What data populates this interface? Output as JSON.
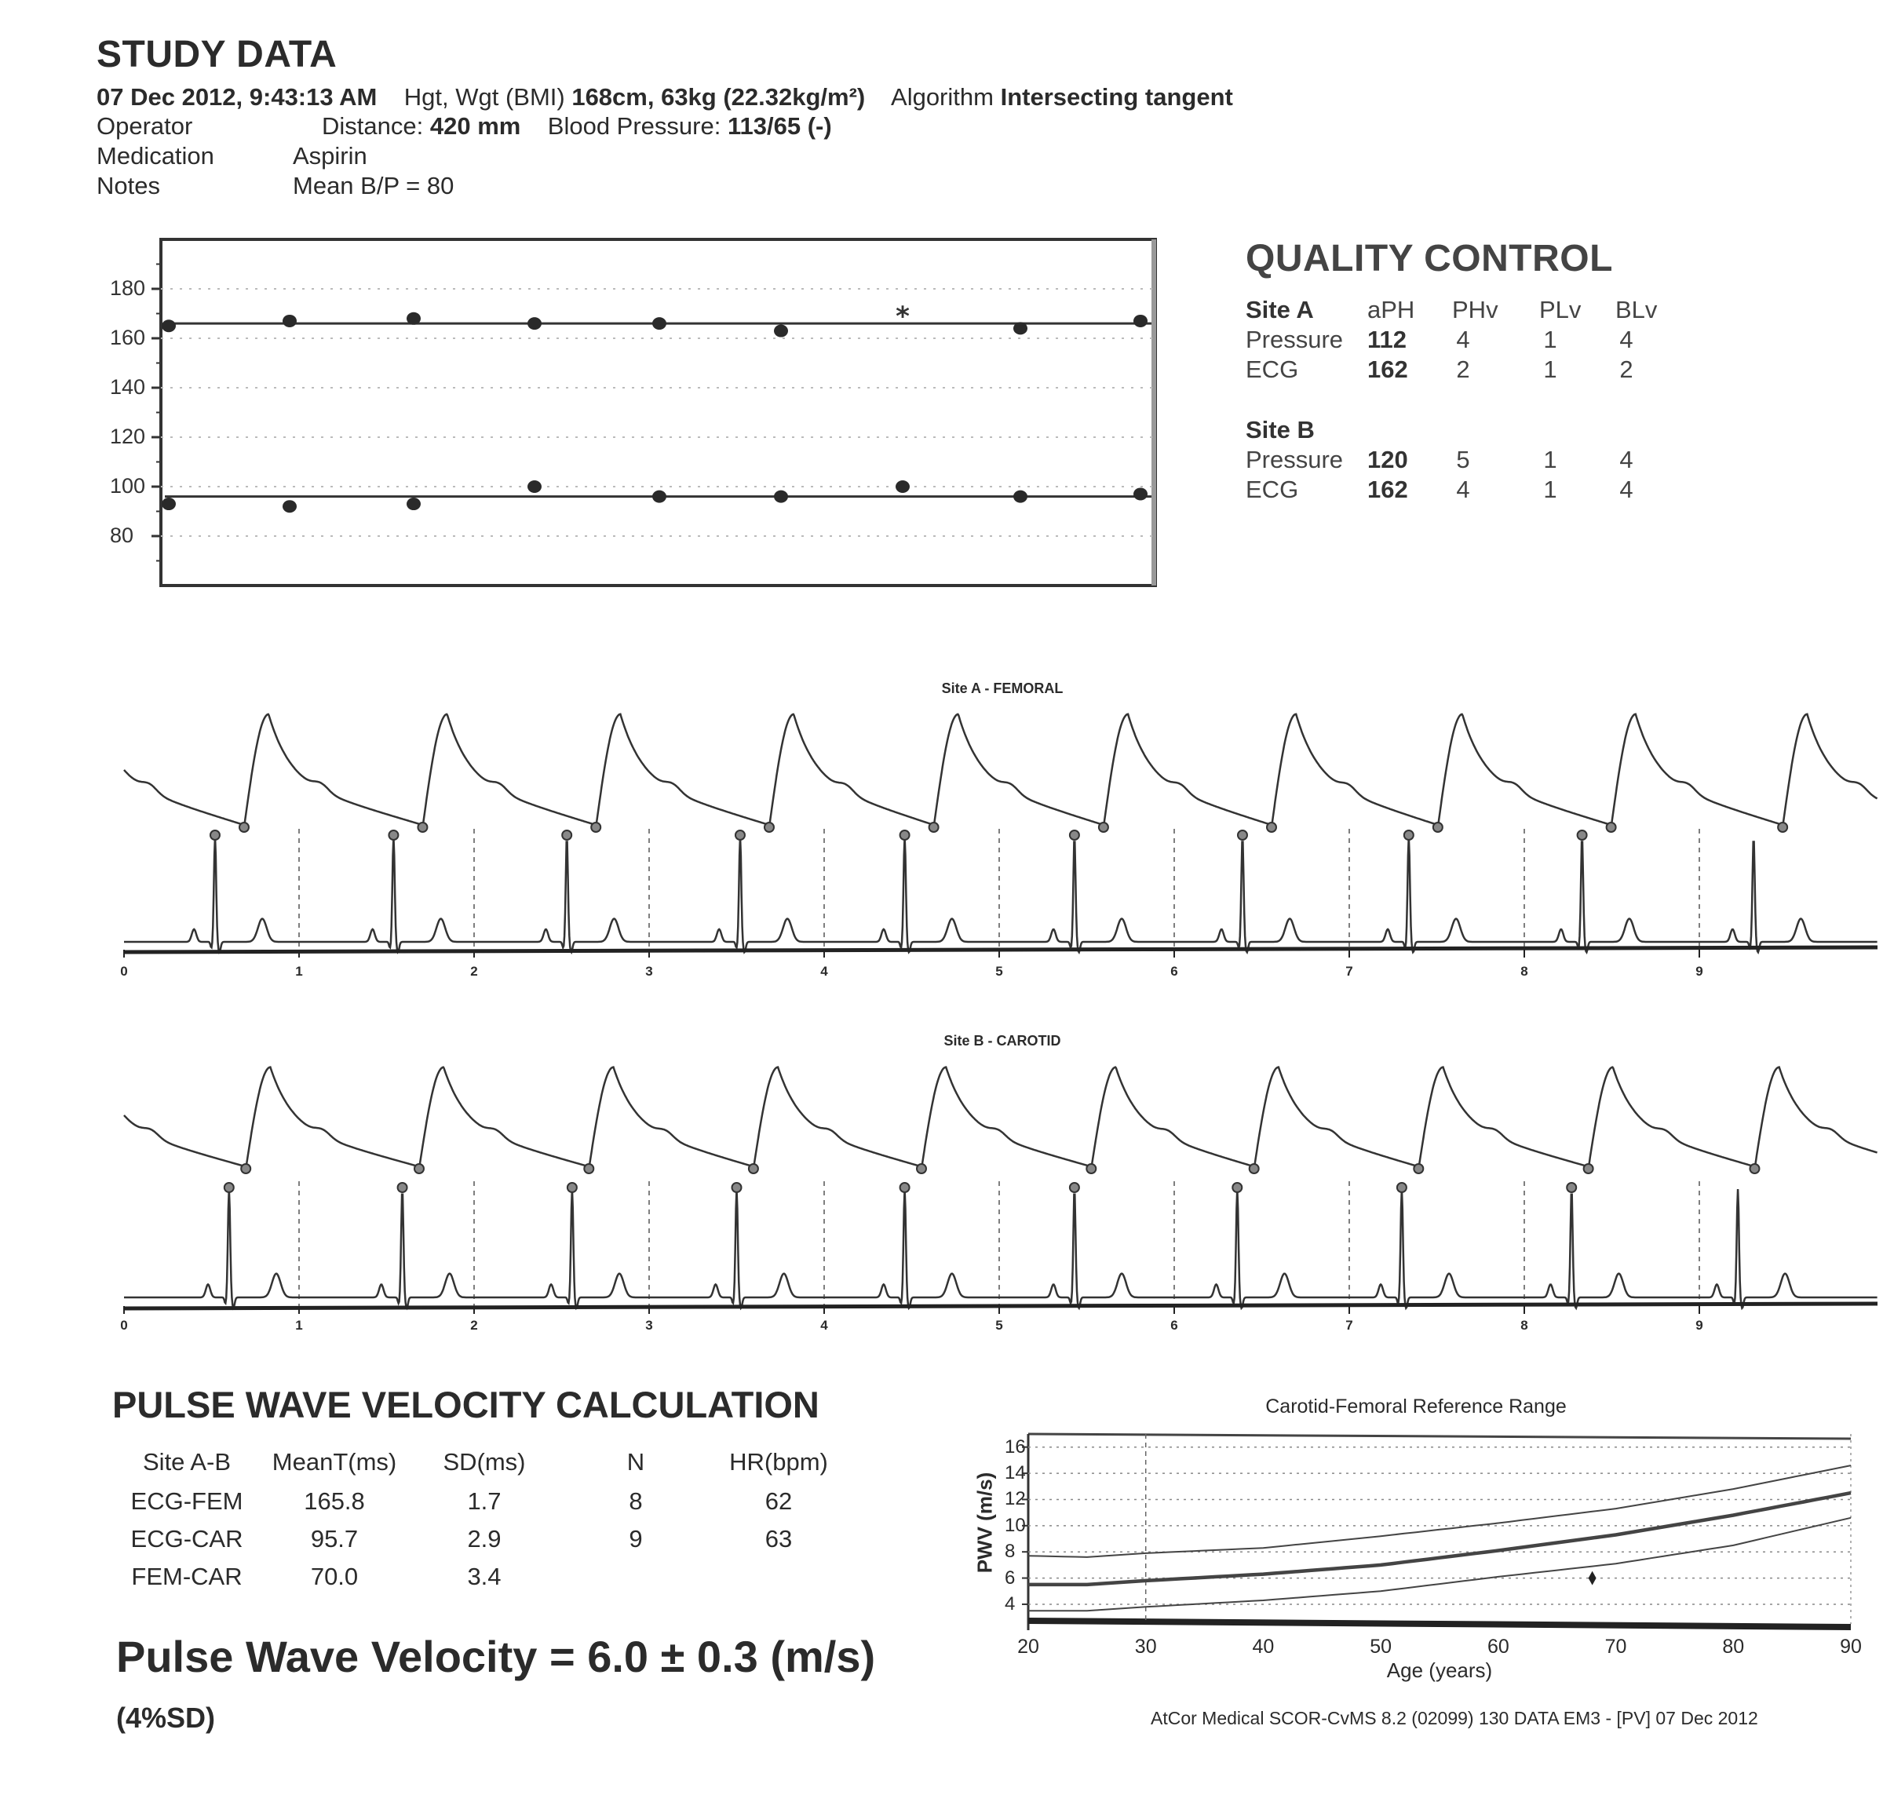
{
  "study": {
    "title": "STUDY DATA",
    "datetime": "07 Dec 2012, 9:43:13 AM",
    "hgt_wgt_label": "Hgt, Wgt (BMI)",
    "hgt_wgt_value": "168cm, 63kg (22.32kg/m²)",
    "algorithm_label": "Algorithm",
    "algorithm_value": "Intersecting tangent",
    "operator_label": "Operator",
    "distance_label": "Distance:",
    "distance_value": "420 mm",
    "bp_label": "Blood Pressure:",
    "bp_value": "113/65 (-)",
    "medication_label": "Medication",
    "medication_value": "Aspirin",
    "notes_label": "Notes",
    "notes_value": "Mean B/P = 80"
  },
  "quality_control": {
    "title": "QUALITY CONTROL",
    "columns": [
      "aPH",
      "PHv",
      "PLv",
      "BLv"
    ],
    "sites": [
      {
        "name": "Site A",
        "rows": [
          {
            "label": "Pressure",
            "values": [
              "112",
              "4",
              "1",
              "4"
            ]
          },
          {
            "label": "ECG",
            "values": [
              "162",
              "2",
              "1",
              "2"
            ]
          }
        ]
      },
      {
        "name": "Site B",
        "rows": [
          {
            "label": "Pressure",
            "values": [
              "120",
              "5",
              "1",
              "4"
            ]
          },
          {
            "label": "ECG",
            "values": [
              "162",
              "4",
              "1",
              "4"
            ]
          }
        ]
      }
    ]
  },
  "pwv_calc": {
    "title": "PULSE WAVE VELOCITY CALCULATION",
    "headers": [
      "Site A-B",
      "MeanT(ms)",
      "SD(ms)",
      "N",
      "HR(bpm)"
    ],
    "rows": [
      [
        "ECG-FEM",
        "165.8",
        "1.7",
        "8",
        "62"
      ],
      [
        "ECG-CAR",
        "95.7",
        "2.9",
        "9",
        "63"
      ],
      [
        "FEM-CAR",
        "70.0",
        "3.4",
        "",
        ""
      ]
    ],
    "result": "Pulse Wave Velocity = 6.0 ± 0.3 (m/s)",
    "result_sd": "(4%SD)"
  },
  "footer": "AtCor Medical SCOR-CvMS 8.2 (02099) 130 DATA EM3 - [PV]  07 Dec 2012",
  "chart_data": [
    {
      "type": "scatter",
      "title": "",
      "ylim": [
        60,
        200
      ],
      "yticks": [
        "180",
        "160",
        "140",
        "120",
        "100",
        "80"
      ],
      "grid": true,
      "series": [
        {
          "values": [
            165,
            167,
            168,
            166,
            166,
            163,
            169,
            164,
            167
          ],
          "mean": 166,
          "markers": [
            "dot",
            "dot",
            "dot",
            "dot",
            "dot",
            "dot",
            "asterisk",
            "dot",
            "dot"
          ]
        },
        {
          "values": [
            93,
            92,
            93,
            100,
            96,
            96,
            100,
            96,
            97
          ],
          "mean": 96,
          "markers": [
            "dot",
            "dot",
            "dot",
            "dot",
            "dot",
            "dot",
            "dot",
            "dot",
            "dot"
          ]
        }
      ]
    },
    {
      "type": "line",
      "title": "Site A - FEMORAL",
      "xlim": [
        0,
        10
      ],
      "xticks": [
        "0",
        "1",
        "2",
        "3",
        "4",
        "5",
        "6",
        "7",
        "8",
        "9"
      ],
      "ecg_r_peaks_s": [
        0.52,
        1.54,
        2.53,
        3.52,
        4.46,
        5.43,
        6.39,
        7.34,
        8.33,
        9.31
      ],
      "pulse_foot_delay_s": 0.166
    },
    {
      "type": "line",
      "title": "Site B - CAROTID",
      "xlim": [
        0,
        10
      ],
      "xticks": [
        "0",
        "1",
        "2",
        "3",
        "4",
        "5",
        "6",
        "7",
        "8",
        "9"
      ],
      "ecg_r_peaks_s": [
        0.6,
        1.59,
        2.56,
        3.5,
        4.46,
        5.43,
        6.36,
        7.3,
        8.27,
        9.22
      ],
      "pulse_foot_delay_s": 0.096
    },
    {
      "type": "line",
      "title": "Carotid-Femoral Reference Range",
      "xlabel": "Age (years)",
      "ylabel": "PWV (m/s)",
      "xlim": [
        20,
        90
      ],
      "ylim": [
        2.5,
        17
      ],
      "xticks": [
        "20",
        "30",
        "40",
        "50",
        "60",
        "70",
        "80",
        "90"
      ],
      "yticks": [
        "16",
        "14",
        "12",
        "10",
        "8",
        "6",
        "4"
      ],
      "grid": true,
      "x": [
        20,
        25,
        30,
        40,
        50,
        60,
        70,
        80,
        90
      ],
      "series": [
        {
          "values": [
            7.7,
            7.6,
            7.9,
            8.3,
            9.2,
            10.2,
            11.3,
            12.8,
            14.6
          ]
        },
        {
          "values": [
            5.5,
            5.5,
            5.8,
            6.3,
            7.0,
            8.1,
            9.3,
            10.8,
            12.5
          ]
        },
        {
          "values": [
            3.5,
            3.5,
            3.8,
            4.3,
            5.0,
            6.1,
            7.1,
            8.5,
            10.6
          ]
        }
      ],
      "patient": {
        "age": 68,
        "pwv": 6.0
      }
    }
  ]
}
